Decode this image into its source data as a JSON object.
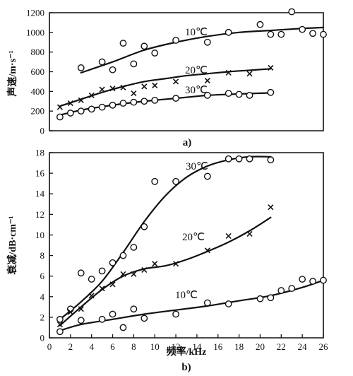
{
  "chart_data": [
    {
      "type": "scatter",
      "panel_label": "a)",
      "xlabel": "",
      "ylabel": "声速/m·s⁻¹",
      "xlim": [
        0,
        26
      ],
      "ylim": [
        0,
        1200
      ],
      "x_ticks": [],
      "y_ticks": [
        0,
        200,
        400,
        600,
        800,
        1000,
        1200
      ],
      "series": [
        {
          "name": "10℃",
          "marker": "circle",
          "points": [
            [
              3,
              640
            ],
            [
              5,
              700
            ],
            [
              6,
              620
            ],
            [
              7,
              890
            ],
            [
              8,
              680
            ],
            [
              9,
              860
            ],
            [
              10,
              790
            ],
            [
              12,
              920
            ],
            [
              15,
              900
            ],
            [
              17,
              1000
            ],
            [
              20,
              1080
            ],
            [
              21,
              980
            ],
            [
              22,
              980
            ],
            [
              23,
              1210
            ],
            [
              24,
              1030
            ],
            [
              25,
              990
            ],
            [
              26,
              980
            ]
          ],
          "curve": [
            [
              3,
              590
            ],
            [
              6,
              700
            ],
            [
              9,
              820
            ],
            [
              12,
              900
            ],
            [
              15,
              960
            ],
            [
              18,
              1000
            ],
            [
              21,
              1020
            ],
            [
              24,
              1040
            ],
            [
              26,
              1050
            ]
          ]
        },
        {
          "name": "20℃",
          "marker": "cross",
          "points": [
            [
              1,
              240
            ],
            [
              2,
              280
            ],
            [
              3,
              310
            ],
            [
              4,
              360
            ],
            [
              5,
              420
            ],
            [
              6,
              430
            ],
            [
              7,
              440
            ],
            [
              8,
              380
            ],
            [
              9,
              450
            ],
            [
              10,
              460
            ],
            [
              12,
              500
            ],
            [
              15,
              510
            ],
            [
              17,
              590
            ],
            [
              19,
              580
            ],
            [
              21,
              640
            ]
          ],
          "curve": [
            [
              1,
              250
            ],
            [
              3,
              320
            ],
            [
              5,
              390
            ],
            [
              7,
              450
            ],
            [
              9,
              500
            ],
            [
              11,
              530
            ],
            [
              13,
              560
            ],
            [
              15,
              580
            ],
            [
              17,
              600
            ],
            [
              19,
              615
            ],
            [
              21,
              630
            ]
          ]
        },
        {
          "name": "30℃",
          "marker": "circle",
          "points": [
            [
              1,
              140
            ],
            [
              2,
              180
            ],
            [
              3,
              200
            ],
            [
              4,
              220
            ],
            [
              5,
              240
            ],
            [
              6,
              260
            ],
            [
              7,
              280
            ],
            [
              8,
              290
            ],
            [
              9,
              300
            ],
            [
              10,
              310
            ],
            [
              12,
              330
            ],
            [
              15,
              360
            ],
            [
              17,
              380
            ],
            [
              18,
              370
            ],
            [
              19,
              360
            ],
            [
              21,
              390
            ]
          ],
          "curve": [
            [
              1,
              160
            ],
            [
              3,
              210
            ],
            [
              5,
              245
            ],
            [
              7,
              275
            ],
            [
              9,
              300
            ],
            [
              11,
              320
            ],
            [
              13,
              340
            ],
            [
              15,
              360
            ],
            [
              17,
              370
            ],
            [
              19,
              378
            ],
            [
              21,
              385
            ]
          ]
        }
      ]
    },
    {
      "type": "scatter",
      "panel_label": "b)",
      "xlabel": "频率/kHz",
      "ylabel": "衰减/dB·cm⁻¹",
      "xlim": [
        0,
        26
      ],
      "ylim": [
        0,
        18
      ],
      "x_ticks": [
        0,
        2,
        4,
        6,
        8,
        10,
        12,
        14,
        16,
        18,
        20,
        22,
        24,
        26
      ],
      "y_ticks": [
        0,
        2,
        4,
        6,
        8,
        10,
        12,
        14,
        16,
        18
      ],
      "series": [
        {
          "name": "30℃",
          "marker": "circle",
          "points": [
            [
              1,
              1.8
            ],
            [
              2,
              2.8
            ],
            [
              3,
              6.3
            ],
            [
              4,
              5.7
            ],
            [
              5,
              6.5
            ],
            [
              6,
              7.3
            ],
            [
              7,
              8
            ],
            [
              8,
              8.8
            ],
            [
              9,
              10.8
            ],
            [
              10,
              15.2
            ],
            [
              12,
              15.2
            ],
            [
              15,
              15.7
            ],
            [
              17,
              17.4
            ],
            [
              18,
              17.4
            ],
            [
              19,
              17.4
            ],
            [
              21,
              17.3
            ]
          ],
          "curve": [
            [
              1,
              1.8
            ],
            [
              3,
              3.5
            ],
            [
              5,
              5.5
            ],
            [
              7,
              8.3
            ],
            [
              9,
              11.3
            ],
            [
              11,
              13.8
            ],
            [
              13,
              15.6
            ],
            [
              15,
              16.7
            ],
            [
              17,
              17.3
            ],
            [
              19,
              17.6
            ],
            [
              21,
              17.6
            ]
          ]
        },
        {
          "name": "20℃",
          "marker": "cross",
          "points": [
            [
              1,
              1.3
            ],
            [
              2,
              2.5
            ],
            [
              3,
              2.8
            ],
            [
              4,
              4.1
            ],
            [
              5,
              4.8
            ],
            [
              6,
              5.2
            ],
            [
              7,
              6.2
            ],
            [
              8,
              6.2
            ],
            [
              9,
              6.6
            ],
            [
              10,
              7.2
            ],
            [
              12,
              7.2
            ],
            [
              15,
              8.5
            ],
            [
              17,
              9.9
            ],
            [
              19,
              10.1
            ],
            [
              21,
              12.7
            ]
          ],
          "curve": [
            [
              1,
              1.2
            ],
            [
              3,
              3
            ],
            [
              5,
              4.7
            ],
            [
              7,
              6
            ],
            [
              9,
              6.7
            ],
            [
              11,
              7
            ],
            [
              13,
              7.6
            ],
            [
              15,
              8.4
            ],
            [
              17,
              9.3
            ],
            [
              19,
              10.4
            ],
            [
              21,
              11.7
            ]
          ]
        },
        {
          "name": "10℃",
          "marker": "circle",
          "points": [
            [
              1,
              0.6
            ],
            [
              3,
              1.7
            ],
            [
              5,
              1.8
            ],
            [
              6,
              2.3
            ],
            [
              7,
              1
            ],
            [
              8,
              2.8
            ],
            [
              9,
              1.9
            ],
            [
              12,
              2.3
            ],
            [
              15,
              3.4
            ],
            [
              17,
              3.3
            ],
            [
              20,
              3.8
            ],
            [
              21,
              3.9
            ],
            [
              22,
              4.6
            ],
            [
              23,
              4.8
            ],
            [
              24,
              5.7
            ],
            [
              25,
              5.5
            ],
            [
              26,
              5.6
            ]
          ],
          "curve": [
            [
              1,
              0.7
            ],
            [
              3,
              1.3
            ],
            [
              6,
              1.8
            ],
            [
              9,
              2.3
            ],
            [
              12,
              2.7
            ],
            [
              15,
              3.1
            ],
            [
              18,
              3.6
            ],
            [
              21,
              4.1
            ],
            [
              24,
              4.9
            ],
            [
              26,
              5.6
            ]
          ]
        }
      ]
    }
  ]
}
